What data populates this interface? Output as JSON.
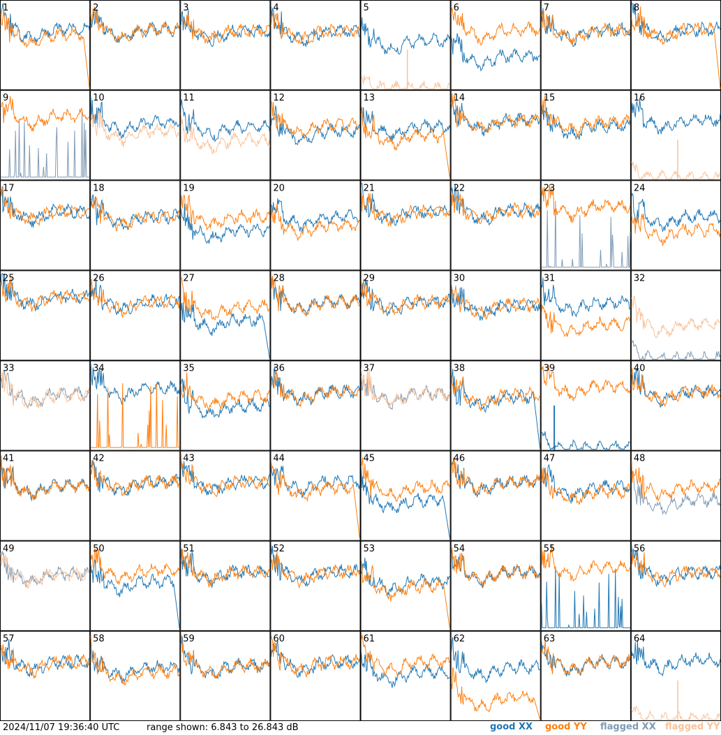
{
  "footer": {
    "timestamp": "2024/11/07 19:36:40 UTC",
    "range_text": "range shown: 6.843 to 26.843 dB"
  },
  "legend": {
    "good_xx": "good XX",
    "good_yy": "good YY",
    "flagged_xx": "flagged XX",
    "flagged_yy": "flagged YY"
  },
  "colors": {
    "good_xx": "#1f77b4",
    "good_yy": "#ff7f0e",
    "flagged_xx": "#7f9ab5",
    "flagged_yy": "#f9c299"
  },
  "chart_data": {
    "type": "line",
    "grid_layout": "8x8 small multiples",
    "y_range_db": [
      6.843,
      26.843
    ],
    "panels": [
      {
        "id": 1,
        "xx": "good",
        "yy": "good",
        "xx_level": 0.68,
        "yy_level": 0.62,
        "yy_drop": true
      },
      {
        "id": 2,
        "xx": "good",
        "yy": "good",
        "xx_level": 0.68,
        "yy_level": 0.68
      },
      {
        "id": 3,
        "xx": "good",
        "yy": "good",
        "xx_level": 0.66,
        "yy_level": 0.67
      },
      {
        "id": 4,
        "xx": "good",
        "yy": "good",
        "xx_level": 0.66,
        "yy_level": 0.66
      },
      {
        "id": 5,
        "xx": "good",
        "yy": "flagged",
        "xx_level": 0.55,
        "yy_level": 0.01,
        "yy_spike": true
      },
      {
        "id": 6,
        "xx": "good",
        "yy": "good",
        "xx_level": 0.38,
        "yy_level": 0.68
      },
      {
        "id": 7,
        "xx": "good",
        "yy": "good",
        "xx_level": 0.67,
        "yy_level": 0.67
      },
      {
        "id": 8,
        "xx": "good",
        "yy": "good",
        "xx_level": 0.68,
        "yy_level": 0.68,
        "yy_drop": true
      },
      {
        "id": 9,
        "xx": "flagged",
        "yy": "good",
        "xx_level": 0.02,
        "yy_level": 0.72,
        "xx_spikes": true
      },
      {
        "id": 10,
        "xx": "good",
        "yy": "flagged",
        "xx_level": 0.65,
        "yy_level": 0.55
      },
      {
        "id": 11,
        "xx": "good",
        "yy": "flagged",
        "xx_level": 0.6,
        "yy_level": 0.45
      },
      {
        "id": 12,
        "xx": "good",
        "yy": "good",
        "xx_level": 0.55,
        "yy_level": 0.62
      },
      {
        "id": 13,
        "xx": "good",
        "yy": "good",
        "xx_level": 0.6,
        "yy_level": 0.5,
        "yy_drop": true
      },
      {
        "id": 14,
        "xx": "good",
        "yy": "good",
        "xx_level": 0.67,
        "yy_level": 0.67
      },
      {
        "id": 15,
        "xx": "good",
        "yy": "good",
        "xx_level": 0.6,
        "yy_level": 0.65
      },
      {
        "id": 16,
        "xx": "good",
        "yy": "flagged",
        "xx_level": 0.68,
        "yy_level": 0.01,
        "yy_spike": true
      },
      {
        "id": 17,
        "xx": "good",
        "yy": "good",
        "xx_level": 0.66,
        "yy_level": 0.66
      },
      {
        "id": 18,
        "xx": "good",
        "yy": "good",
        "xx_level": 0.6,
        "yy_level": 0.6
      },
      {
        "id": 19,
        "xx": "good",
        "yy": "good",
        "xx_level": 0.45,
        "yy_level": 0.6
      },
      {
        "id": 20,
        "xx": "good",
        "yy": "good",
        "xx_level": 0.6,
        "yy_level": 0.5
      },
      {
        "id": 21,
        "xx": "good",
        "yy": "good",
        "xx_level": 0.66,
        "yy_level": 0.66
      },
      {
        "id": 22,
        "xx": "good",
        "yy": "good",
        "xx_level": 0.67,
        "yy_level": 0.67
      },
      {
        "id": 23,
        "xx": "flagged",
        "yy": "good",
        "xx_level": 0.1,
        "yy_level": 0.72,
        "xx_spikes": true
      },
      {
        "id": 24,
        "xx": "good",
        "yy": "good",
        "xx_level": 0.6,
        "yy_level": 0.45
      },
      {
        "id": 25,
        "xx": "good",
        "yy": "good",
        "xx_level": 0.72,
        "yy_level": 0.72
      },
      {
        "id": 26,
        "xx": "good",
        "yy": "good",
        "xx_level": 0.66,
        "yy_level": 0.66
      },
      {
        "id": 27,
        "xx": "good",
        "yy": "good",
        "xx_level": 0.45,
        "yy_level": 0.6,
        "xx_drop": true
      },
      {
        "id": 28,
        "xx": "good",
        "yy": "good",
        "xx_level": 0.66,
        "yy_level": 0.66
      },
      {
        "id": 29,
        "xx": "good",
        "yy": "good",
        "xx_level": 0.66,
        "yy_level": 0.66
      },
      {
        "id": 30,
        "xx": "good",
        "yy": "good",
        "xx_level": 0.62,
        "yy_level": 0.62
      },
      {
        "id": 31,
        "xx": "good",
        "yy": "good",
        "xx_level": 0.65,
        "yy_level": 0.4
      },
      {
        "id": 32,
        "xx": "flagged",
        "yy": "flagged",
        "xx_level": 0.01,
        "yy_level": 0.4
      },
      {
        "id": 33,
        "xx": "flagged",
        "yy": "flagged",
        "xx_level": 0.64,
        "yy_level": 0.62
      },
      {
        "id": 34,
        "xx": "good",
        "yy": "good",
        "xx_level": 0.7,
        "yy_level": 0.05,
        "yy_spikes": true
      },
      {
        "id": 35,
        "xx": "good",
        "yy": "good",
        "xx_level": 0.5,
        "yy_level": 0.6
      },
      {
        "id": 36,
        "xx": "good",
        "yy": "good",
        "xx_level": 0.66,
        "yy_level": 0.66
      },
      {
        "id": 37,
        "xx": "flagged",
        "yy": "flagged",
        "xx_level": 0.64,
        "yy_level": 0.64
      },
      {
        "id": 38,
        "xx": "good",
        "yy": "good",
        "xx_level": 0.6,
        "yy_level": 0.62,
        "xx_drop": true
      },
      {
        "id": 39,
        "xx": "good",
        "yy": "good",
        "xx_level": 0.02,
        "yy_level": 0.72,
        "xx_spike": true
      },
      {
        "id": 40,
        "xx": "good",
        "yy": "good",
        "xx_level": 0.66,
        "yy_level": 0.66
      },
      {
        "id": 41,
        "xx": "good",
        "yy": "good",
        "xx_level": 0.62,
        "yy_level": 0.62
      },
      {
        "id": 42,
        "xx": "good",
        "yy": "good",
        "xx_level": 0.66,
        "yy_level": 0.66
      },
      {
        "id": 43,
        "xx": "good",
        "yy": "good",
        "xx_level": 0.66,
        "yy_level": 0.66
      },
      {
        "id": 44,
        "xx": "good",
        "yy": "good",
        "xx_level": 0.66,
        "yy_level": 0.6,
        "yy_drop": true
      },
      {
        "id": 45,
        "xx": "good",
        "yy": "good",
        "xx_level": 0.45,
        "yy_level": 0.6,
        "xx_drop": true
      },
      {
        "id": 46,
        "xx": "good",
        "yy": "good",
        "xx_level": 0.66,
        "yy_level": 0.66
      },
      {
        "id": 47,
        "xx": "good",
        "yy": "good",
        "xx_level": 0.6,
        "yy_level": 0.55
      },
      {
        "id": 48,
        "xx": "flagged",
        "yy": "good",
        "xx_level": 0.45,
        "yy_level": 0.6
      },
      {
        "id": 49,
        "xx": "flagged",
        "yy": "flagged",
        "xx_level": 0.64,
        "yy_level": 0.64
      },
      {
        "id": 50,
        "xx": "good",
        "yy": "good",
        "xx_level": 0.55,
        "yy_level": 0.68,
        "xx_drop": true
      },
      {
        "id": 51,
        "xx": "good",
        "yy": "good",
        "xx_level": 0.66,
        "yy_level": 0.66
      },
      {
        "id": 52,
        "xx": "good",
        "yy": "good",
        "xx_level": 0.66,
        "yy_level": 0.66
      },
      {
        "id": 53,
        "xx": "good",
        "yy": "good",
        "xx_level": 0.55,
        "yy_level": 0.5,
        "yy_drop": true
      },
      {
        "id": 54,
        "xx": "good",
        "yy": "good",
        "xx_level": 0.66,
        "yy_level": 0.66
      },
      {
        "id": 55,
        "xx": "good",
        "yy": "good",
        "xx_level": 0.1,
        "yy_level": 0.72,
        "xx_spikes": true
      },
      {
        "id": 56,
        "xx": "good",
        "yy": "good",
        "xx_level": 0.66,
        "yy_level": 0.66
      },
      {
        "id": 57,
        "xx": "good",
        "yy": "good",
        "xx_level": 0.66,
        "yy_level": 0.66
      },
      {
        "id": 58,
        "xx": "good",
        "yy": "good",
        "xx_level": 0.6,
        "yy_level": 0.55
      },
      {
        "id": 59,
        "xx": "good",
        "yy": "good",
        "xx_level": 0.62,
        "yy_level": 0.62
      },
      {
        "id": 60,
        "xx": "good",
        "yy": "good",
        "xx_level": 0.66,
        "yy_level": 0.66
      },
      {
        "id": 61,
        "xx": "good",
        "yy": "good",
        "xx_level": 0.55,
        "yy_level": 0.66
      },
      {
        "id": 62,
        "xx": "good",
        "yy": "good",
        "xx_level": 0.6,
        "yy_level": 0.25,
        "yy_drop": true
      },
      {
        "id": 63,
        "xx": "good",
        "yy": "good",
        "xx_level": 0.66,
        "yy_level": 0.66
      },
      {
        "id": 64,
        "xx": "good",
        "yy": "flagged",
        "xx_level": 0.68,
        "yy_level": 0.01,
        "yy_spike": true
      }
    ]
  }
}
